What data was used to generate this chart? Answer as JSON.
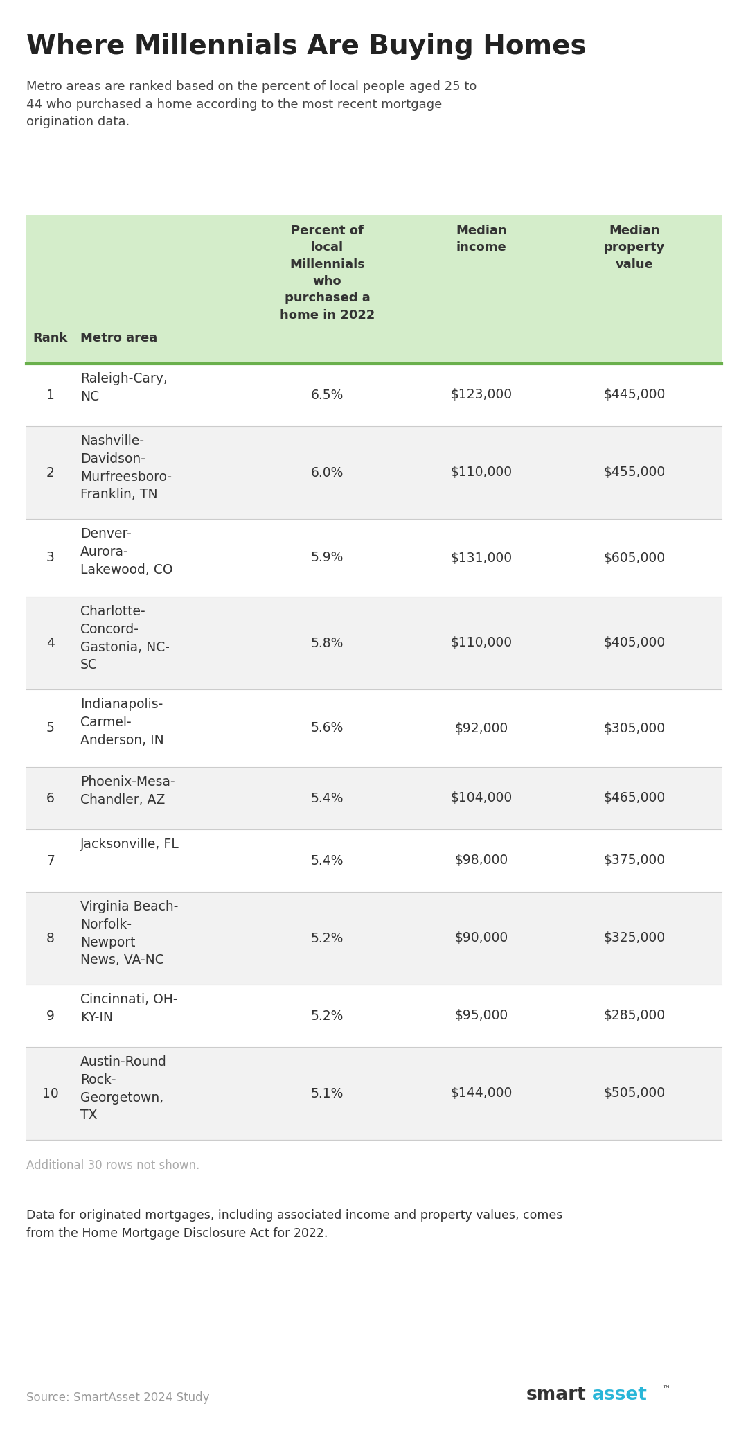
{
  "title": "Where Millennials Are Buying Homes",
  "subtitle": "Metro areas are ranked based on the percent of local people aged 25 to\n44 who purchased a home according to the most recent mortgage\norigination data.",
  "col_headers": [
    "Rank",
    "Metro area",
    "Percent of\nlocal\nMillennials\nwho\npurchased a\nhome in 2022",
    "Median\nincome",
    "Median\nproperty\nvalue"
  ],
  "rows": [
    [
      "1",
      "Raleigh-Cary,\nNC",
      "6.5%",
      "$123,000",
      "$445,000"
    ],
    [
      "2",
      "Nashville-\nDavidson-\nMurfreesboro-\nFranklin, TN",
      "6.0%",
      "$110,000",
      "$455,000"
    ],
    [
      "3",
      "Denver-\nAurora-\nLakewood, CO",
      "5.9%",
      "$131,000",
      "$605,000"
    ],
    [
      "4",
      "Charlotte-\nConcord-\nGastonia, NC-\nSC",
      "5.8%",
      "$110,000",
      "$405,000"
    ],
    [
      "5",
      "Indianapolis-\nCarmel-\nAnderson, IN",
      "5.6%",
      "$92,000",
      "$305,000"
    ],
    [
      "6",
      "Phoenix-Mesa-\nChandler, AZ",
      "5.4%",
      "$104,000",
      "$465,000"
    ],
    [
      "7",
      "Jacksonville, FL",
      "5.4%",
      "$98,000",
      "$375,000"
    ],
    [
      "8",
      "Virginia Beach-\nNorfolk-\nNewport\nNews, VA-NC",
      "5.2%",
      "$90,000",
      "$325,000"
    ],
    [
      "9",
      "Cincinnati, OH-\nKY-IN",
      "5.2%",
      "$95,000",
      "$285,000"
    ],
    [
      "10",
      "Austin-Round\nRock-\nGeorgetown,\nTX",
      "5.1%",
      "$144,000",
      "$505,000"
    ]
  ],
  "footer_note": "Additional 30 rows not shown.",
  "footer_data": "Data for originated mortgages, including associated income and property values, comes\nfrom the Home Mortgage Disclosure Act for 2022.",
  "source": "Source: SmartAsset 2024 Study",
  "header_bg": "#d4edca",
  "row_bg_odd": "#ffffff",
  "row_bg_even": "#f2f2f2",
  "header_line_color": "#6ab04c",
  "text_color": "#333333",
  "title_color": "#222222",
  "subtitle_color": "#444444",
  "footer_note_color": "#aaaaaa",
  "footer_data_color": "#333333",
  "source_color": "#999999",
  "smart_color": "#333333",
  "asset_color": "#29b6d8",
  "bg_color": "#ffffff",
  "row_line_counts": [
    2,
    4,
    3,
    4,
    3,
    2,
    1,
    4,
    2,
    4
  ]
}
